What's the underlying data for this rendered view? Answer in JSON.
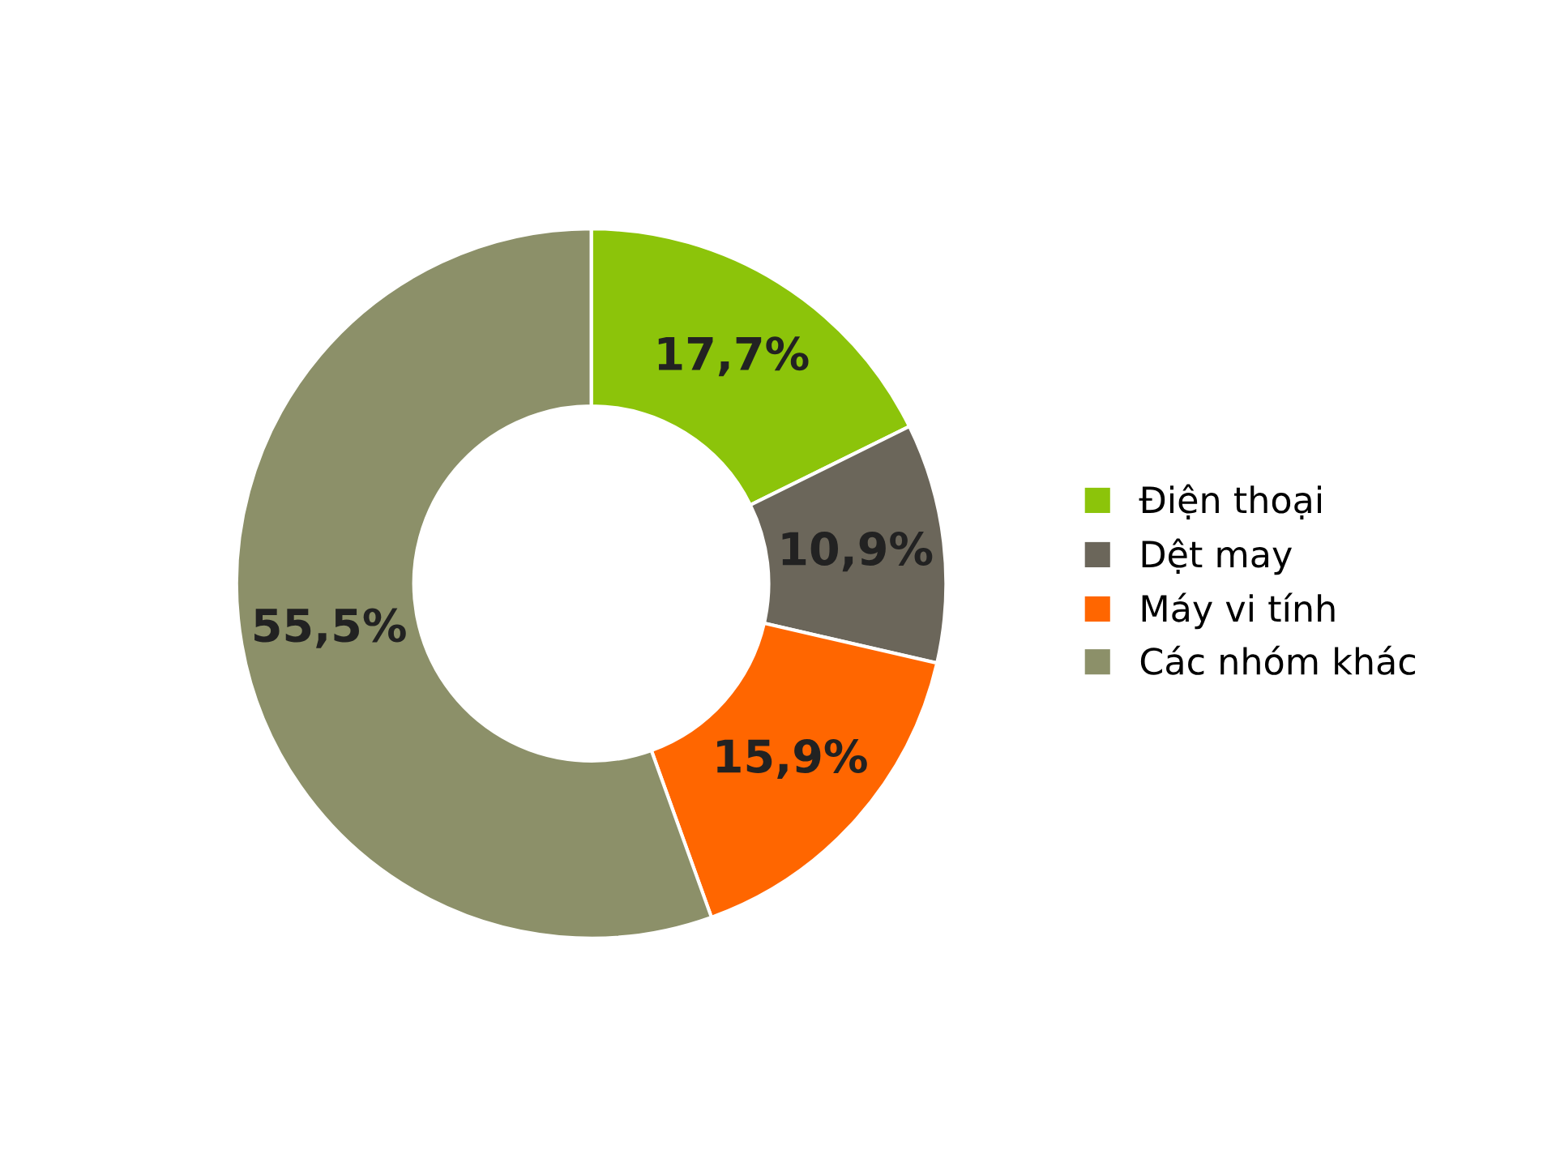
{
  "chart_data": {
    "type": "donut",
    "categories": [
      "Điện thoại",
      "Dệt may",
      "Máy vi tính",
      "Các nhóm khác"
    ],
    "values": [
      17.7,
      10.9,
      15.9,
      55.5
    ],
    "value_labels": [
      "17,7%",
      "10,9%",
      "15,9%",
      "55,5%"
    ],
    "colors": [
      "#8cc40a",
      "#6b665a",
      "#ff6600",
      "#8c9069"
    ],
    "legend": "right"
  }
}
